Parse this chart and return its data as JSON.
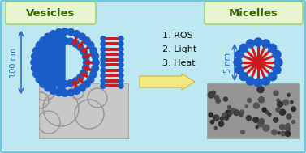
{
  "bg_color": "#bde8f2",
  "border_color": "#6cc8dc",
  "vesicles_label": "Vesicles",
  "micelles_label": "Micelles",
  "label_box_color": "#e8f5d0",
  "label_box_edge": "#99cc66",
  "label_fontsize": 9.5,
  "label_color": "#336600",
  "conditions": "1. ROS\n2. Light\n3. Heat",
  "conditions_fontsize": 8.0,
  "size_label_vesicle": "100 nm",
  "size_label_micelle": "5 nm",
  "size_label_fontsize": 7.0,
  "arrow_fill": "#f5e880",
  "arrow_edge": "#c8b840",
  "blue_color": "#1a5cc8",
  "red_color": "#cc1a1a",
  "tem_left_color": "#c0c0c0",
  "tem_right_color": "#909090"
}
